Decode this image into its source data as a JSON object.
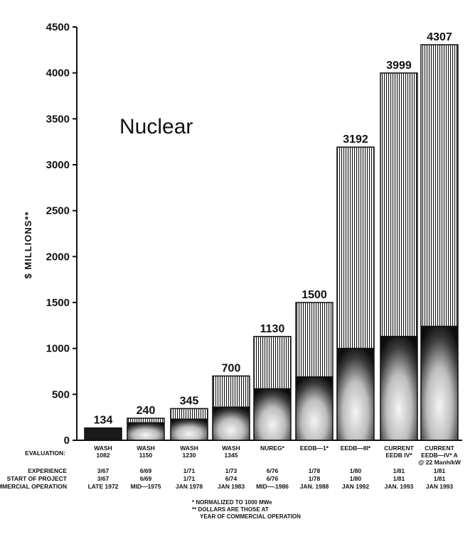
{
  "chart_data": {
    "type": "bar",
    "title": "Nuclear",
    "ylabel": "$ MILLIONS**",
    "ylim": [
      0,
      4500
    ],
    "yticks": [
      0,
      500,
      1000,
      1500,
      2000,
      2500,
      3000,
      3500,
      4000,
      4500
    ],
    "grid": false,
    "categories": [
      {
        "evaluation": [
          "WASH",
          "1082"
        ],
        "experience": "3/67",
        "start": "3/67",
        "operation": "LATE 1972"
      },
      {
        "evaluation": [
          "WASH",
          "1150"
        ],
        "experience": "6/69",
        "start": "6/69",
        "operation": "MID—1975"
      },
      {
        "evaluation": [
          "WASH",
          "1230"
        ],
        "experience": "1/71",
        "start": "1/71",
        "operation": "JAN 1978"
      },
      {
        "evaluation": [
          "WASH",
          "1345"
        ],
        "experience": "1/73",
        "start": "6/74",
        "operation": "JAN 1983"
      },
      {
        "evaluation": [
          "NUREG*"
        ],
        "experience": "6/76",
        "start": "6/76",
        "operation": "MID—-1986"
      },
      {
        "evaluation": [
          "EEDB—1*"
        ],
        "experience": "1/78",
        "start": "1/78",
        "operation": "JAN. 1988"
      },
      {
        "evaluation": [
          "EEDB—III*"
        ],
        "experience": "1/80",
        "start": "1/80",
        "operation": "JAN 1992"
      },
      {
        "evaluation": [
          "CURRENT",
          "EEDB IV*"
        ],
        "experience": "1/81",
        "start": "1/81",
        "operation": "JAN. 1993"
      },
      {
        "evaluation": [
          "CURRENT",
          "EEDB—IV* A",
          "@ 22 Manh/kW"
        ],
        "experience": "1/81",
        "start": "1/81",
        "operation": "JAN 1993"
      }
    ],
    "values": [
      134,
      240,
      345,
      700,
      1130,
      1500,
      3192,
      3999,
      4307
    ],
    "value_labels": [
      "134",
      "240",
      "345",
      "700",
      "1130",
      "1500",
      "3192",
      "3999",
      "4307"
    ],
    "lower_segment_values": [
      134,
      190,
      230,
      360,
      560,
      690,
      1000,
      1130,
      1240
    ],
    "row_labels": {
      "evaluation": "EVALUATION:",
      "experience": "EXPERIENCE",
      "start": "START OF PROJECT",
      "operation": "COMMERCIAL OPERATION"
    },
    "footnotes": [
      "* NORMALIZED TO 1000 MWe",
      "** DOLLARS ARE THOSE AT",
      "YEAR OF COMMERCIAL OPERATION"
    ]
  },
  "colors": {
    "ink": "#111111",
    "paper": "#ffffff",
    "upper_fill": "vertical-hatch",
    "lower_fill": "dark-stipple"
  }
}
